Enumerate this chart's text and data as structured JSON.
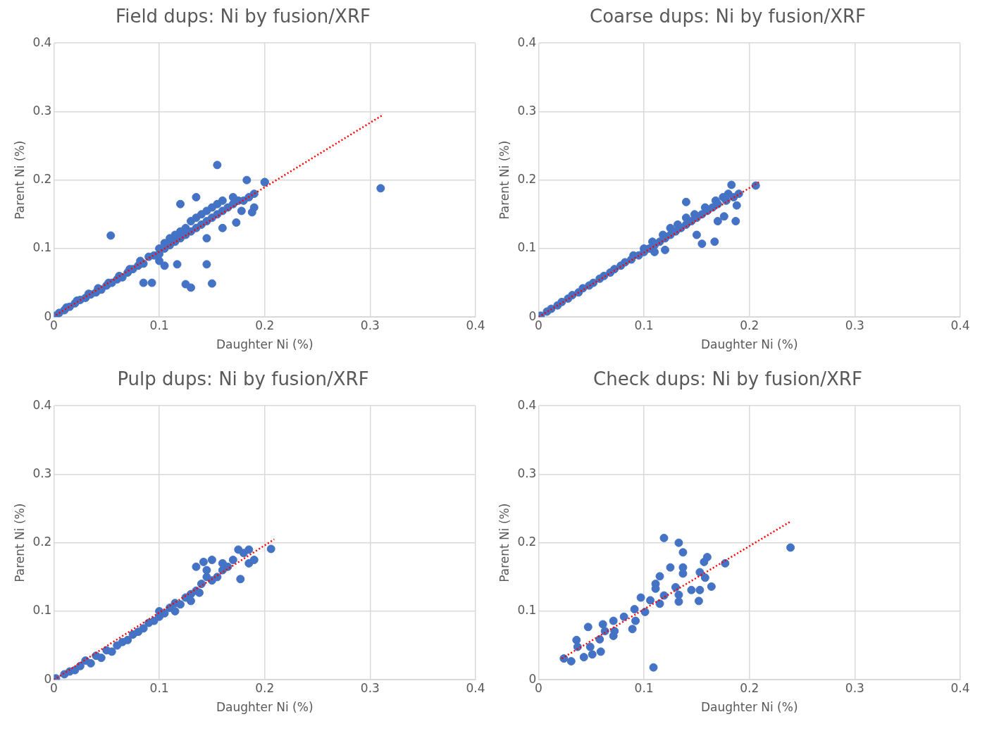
{
  "chart_data": [
    {
      "type": "scatter",
      "title": "Field dups: Ni by fusion/XRF",
      "xlabel": "Daughter Ni (%)",
      "ylabel": "Parent Ni (%)",
      "xlim": [
        0,
        0.4
      ],
      "ylim": [
        0,
        0.4
      ],
      "xticks": [
        0,
        0.1,
        0.2,
        0.3,
        0.4
      ],
      "yticks": [
        0,
        0.1,
        0.2,
        0.3,
        0.4
      ],
      "grid": true,
      "marker": "circle",
      "series": [
        {
          "type": "scatter",
          "color": "#4472c4",
          "x": [
            0.002,
            0.005,
            0.01,
            0.012,
            0.015,
            0.02,
            0.022,
            0.025,
            0.03,
            0.033,
            0.035,
            0.04,
            0.042,
            0.045,
            0.05,
            0.052,
            0.055,
            0.06,
            0.062,
            0.065,
            0.07,
            0.072,
            0.075,
            0.08,
            0.082,
            0.085,
            0.093,
            0.09,
            0.095,
            0.1,
            0.1,
            0.105,
            0.105,
            0.11,
            0.11,
            0.115,
            0.115,
            0.12,
            0.12,
            0.125,
            0.125,
            0.13,
            0.13,
            0.135,
            0.135,
            0.14,
            0.14,
            0.145,
            0.145,
            0.15,
            0.15,
            0.155,
            0.155,
            0.16,
            0.16,
            0.165,
            0.17,
            0.17,
            0.175,
            0.18,
            0.185,
            0.19,
            0.19,
            0.2,
            0.155,
            0.31,
            0.054,
            0.2,
            0.183,
            0.12,
            0.135,
            0.125,
            0.13,
            0.15,
            0.105,
            0.117,
            0.145,
            0.085,
            0.178,
            0.173,
            0.188,
            0.145,
            0.16,
            0.1
          ],
          "values": [
            0.002,
            0.006,
            0.01,
            0.014,
            0.015,
            0.02,
            0.024,
            0.025,
            0.028,
            0.034,
            0.033,
            0.036,
            0.042,
            0.04,
            0.046,
            0.05,
            0.05,
            0.055,
            0.06,
            0.058,
            0.065,
            0.07,
            0.07,
            0.075,
            0.082,
            0.078,
            0.05,
            0.088,
            0.09,
            0.092,
            0.1,
            0.1,
            0.108,
            0.105,
            0.115,
            0.11,
            0.12,
            0.115,
            0.125,
            0.12,
            0.13,
            0.125,
            0.14,
            0.13,
            0.145,
            0.135,
            0.15,
            0.14,
            0.155,
            0.145,
            0.16,
            0.15,
            0.165,
            0.155,
            0.17,
            0.16,
            0.165,
            0.175,
            0.17,
            0.17,
            0.175,
            0.18,
            0.16,
            0.197,
            0.222,
            0.188,
            0.119,
            0.197,
            0.2,
            0.165,
            0.175,
            0.048,
            0.043,
            0.049,
            0.075,
            0.077,
            0.077,
            0.05,
            0.155,
            0.138,
            0.153,
            0.115,
            0.13,
            0.082
          ]
        },
        {
          "type": "line",
          "color": "#ff0000",
          "line_style": "dotted",
          "marker": "none",
          "x": [
            0.002,
            0.312
          ],
          "values": [
            0.003,
            0.295
          ]
        }
      ]
    },
    {
      "type": "scatter",
      "title": "Coarse dups: Ni by fusion/XRF",
      "xlabel": "Daughter Ni (%)",
      "ylabel": "Parent Ni (%)",
      "xlim": [
        0,
        0.4
      ],
      "ylim": [
        0,
        0.4
      ],
      "xticks": [
        0,
        0.1,
        0.2,
        0.3,
        0.4
      ],
      "yticks": [
        0,
        0.1,
        0.2,
        0.3,
        0.4
      ],
      "grid": true,
      "marker": "circle",
      "series": [
        {
          "type": "scatter",
          "color": "#4472c4",
          "x": [
            0.002,
            0.008,
            0.012,
            0.018,
            0.022,
            0.028,
            0.032,
            0.038,
            0.042,
            0.048,
            0.052,
            0.058,
            0.062,
            0.068,
            0.072,
            0.078,
            0.082,
            0.088,
            0.09,
            0.095,
            0.1,
            0.1,
            0.105,
            0.108,
            0.11,
            0.115,
            0.118,
            0.12,
            0.125,
            0.125,
            0.13,
            0.132,
            0.135,
            0.14,
            0.14,
            0.145,
            0.148,
            0.15,
            0.155,
            0.158,
            0.16,
            0.165,
            0.168,
            0.17,
            0.175,
            0.178,
            0.18,
            0.185,
            0.19,
            0.206,
            0.167,
            0.155,
            0.187,
            0.176,
            0.183,
            0.188,
            0.14,
            0.11,
            0.12,
            0.15,
            0.17
          ],
          "values": [
            0.002,
            0.008,
            0.012,
            0.017,
            0.022,
            0.027,
            0.032,
            0.036,
            0.042,
            0.046,
            0.05,
            0.056,
            0.06,
            0.065,
            0.07,
            0.075,
            0.08,
            0.084,
            0.09,
            0.09,
            0.095,
            0.1,
            0.1,
            0.11,
            0.105,
            0.11,
            0.12,
            0.115,
            0.12,
            0.13,
            0.125,
            0.135,
            0.13,
            0.135,
            0.145,
            0.14,
            0.15,
            0.145,
            0.15,
            0.16,
            0.155,
            0.16,
            0.17,
            0.165,
            0.175,
            0.17,
            0.18,
            0.175,
            0.18,
            0.192,
            0.11,
            0.107,
            0.14,
            0.147,
            0.193,
            0.163,
            0.168,
            0.095,
            0.098,
            0.12,
            0.14
          ]
        },
        {
          "type": "line",
          "color": "#ff0000",
          "line_style": "dotted",
          "marker": "none",
          "x": [
            0,
            0.209
          ],
          "values": [
            0,
            0.197
          ]
        }
      ]
    },
    {
      "type": "scatter",
      "title": "Pulp dups: Ni by fusion/XRF",
      "xlabel": "Daughter Ni (%)",
      "ylabel": "Parent Ni (%)",
      "xlim": [
        0,
        0.4
      ],
      "ylim": [
        0,
        0.4
      ],
      "xticks": [
        0,
        0.1,
        0.2,
        0.3,
        0.4
      ],
      "yticks": [
        0,
        0.1,
        0.2,
        0.3,
        0.4
      ],
      "grid": true,
      "marker": "circle",
      "series": [
        {
          "type": "scatter",
          "color": "#4472c4",
          "x": [
            0.002,
            0.01,
            0.015,
            0.02,
            0.025,
            0.03,
            0.035,
            0.04,
            0.045,
            0.05,
            0.055,
            0.06,
            0.065,
            0.07,
            0.075,
            0.08,
            0.085,
            0.09,
            0.095,
            0.1,
            0.1,
            0.105,
            0.11,
            0.115,
            0.115,
            0.12,
            0.125,
            0.13,
            0.13,
            0.135,
            0.138,
            0.14,
            0.145,
            0.145,
            0.15,
            0.155,
            0.16,
            0.165,
            0.17,
            0.175,
            0.18,
            0.185,
            0.19,
            0.185,
            0.206,
            0.16,
            0.135,
            0.15,
            0.177,
            0.142
          ],
          "values": [
            0.002,
            0.008,
            0.012,
            0.014,
            0.02,
            0.028,
            0.024,
            0.035,
            0.032,
            0.043,
            0.041,
            0.05,
            0.055,
            0.058,
            0.066,
            0.07,
            0.075,
            0.083,
            0.086,
            0.092,
            0.1,
            0.097,
            0.105,
            0.1,
            0.112,
            0.11,
            0.12,
            0.115,
            0.125,
            0.13,
            0.127,
            0.14,
            0.15,
            0.16,
            0.145,
            0.15,
            0.16,
            0.165,
            0.175,
            0.19,
            0.185,
            0.19,
            0.175,
            0.17,
            0.191,
            0.17,
            0.165,
            0.175,
            0.147,
            0.172
          ]
        },
        {
          "type": "line",
          "color": "#ff0000",
          "line_style": "dotted",
          "marker": "none",
          "x": [
            0,
            0.209
          ],
          "values": [
            0,
            0.205
          ]
        }
      ]
    },
    {
      "type": "scatter",
      "title": "Check dups: Ni by fusion/XRF",
      "xlabel": "Daughter Ni (%)",
      "ylabel": "Parent Ni (%)",
      "xlim": [
        0,
        0.4
      ],
      "ylim": [
        0,
        0.4
      ],
      "xticks": [
        0,
        0.1,
        0.2,
        0.3,
        0.4
      ],
      "yticks": [
        0,
        0.1,
        0.2,
        0.3,
        0.4
      ],
      "grid": true,
      "marker": "circle",
      "series": [
        {
          "type": "scatter",
          "color": "#4472c4",
          "x": [
            0.119,
            0.133,
            0.137,
            0.239,
            0.16,
            0.157,
            0.177,
            0.125,
            0.137,
            0.137,
            0.153,
            0.158,
            0.115,
            0.111,
            0.111,
            0.164,
            0.13,
            0.145,
            0.153,
            0.133,
            0.133,
            0.152,
            0.119,
            0.115,
            0.097,
            0.106,
            0.091,
            0.101,
            0.092,
            0.089,
            0.081,
            0.071,
            0.061,
            0.047,
            0.072,
            0.071,
            0.063,
            0.058,
            0.036,
            0.037,
            0.049,
            0.059,
            0.043,
            0.051,
            0.024,
            0.031,
            0.109
          ],
          "values": [
            0.207,
            0.2,
            0.186,
            0.193,
            0.179,
            0.172,
            0.17,
            0.164,
            0.164,
            0.155,
            0.157,
            0.149,
            0.151,
            0.14,
            0.133,
            0.136,
            0.135,
            0.131,
            0.131,
            0.124,
            0.114,
            0.115,
            0.123,
            0.111,
            0.12,
            0.116,
            0.103,
            0.099,
            0.086,
            0.074,
            0.092,
            0.086,
            0.081,
            0.077,
            0.071,
            0.064,
            0.071,
            0.059,
            0.058,
            0.048,
            0.048,
            0.041,
            0.033,
            0.037,
            0.031,
            0.027,
            0.018
          ]
        },
        {
          "type": "line",
          "color": "#ff0000",
          "line_style": "dotted",
          "marker": "none",
          "x": [
            0.022,
            0.239
          ],
          "values": [
            0.031,
            0.231
          ]
        }
      ]
    }
  ]
}
